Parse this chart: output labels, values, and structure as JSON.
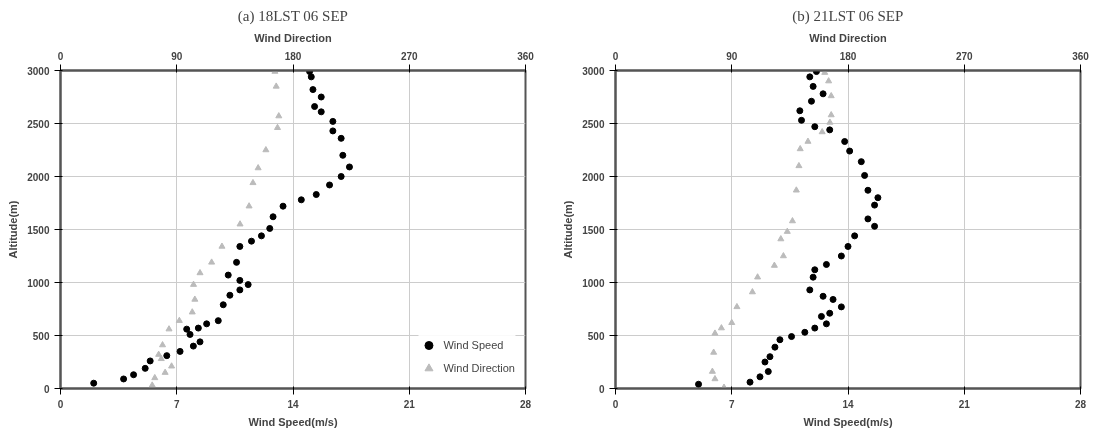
{
  "chart_data": [
    {
      "type": "scatter",
      "title": "(a) 18LST 06 SEP",
      "xlabel": "Wind Speed(m/s)",
      "x2label": "Wind Direction",
      "ylabel": "Altitude(m)",
      "xlim": [
        0,
        28
      ],
      "xticks": [
        0,
        7,
        14,
        21,
        28
      ],
      "x2lim": [
        0,
        360
      ],
      "x2ticks": [
        0,
        90,
        180,
        270,
        360
      ],
      "ylim": [
        0,
        3000
      ],
      "yticks": [
        0,
        500,
        1000,
        1500,
        2000,
        2500,
        3000
      ],
      "grid": true,
      "legend": "bottom right",
      "series": [
        {
          "name": "Wind Speed",
          "color": "#000000",
          "marker": "circle",
          "x": [
            2.0,
            3.8,
            4.4,
            5.1,
            5.4,
            6.4,
            7.2,
            8.0,
            8.4,
            7.8,
            7.6,
            8.3,
            8.8,
            9.5,
            9.8,
            10.2,
            10.8,
            11.3,
            10.8,
            10.1,
            10.6,
            10.8,
            11.5,
            12.1,
            12.6,
            12.8,
            13.4,
            14.5,
            15.4,
            16.2,
            16.9,
            17.4,
            17.0,
            16.9,
            16.4,
            16.4,
            15.7,
            15.3,
            15.7,
            15.2,
            15.1,
            15.0
          ],
          "values": [
            50,
            90,
            130,
            190,
            260,
            310,
            350,
            400,
            440,
            510,
            560,
            570,
            610,
            640,
            790,
            880,
            930,
            980,
            1020,
            1070,
            1190,
            1340,
            1390,
            1440,
            1510,
            1620,
            1720,
            1780,
            1830,
            1920,
            2000,
            2090,
            2200,
            2360,
            2430,
            2520,
            2610,
            2660,
            2750,
            2820,
            2940,
            2990
          ]
        },
        {
          "name": "Wind Direction",
          "color": "#bbbbbb",
          "marker": "triangle",
          "axis": "x2",
          "x": [
            71,
            73,
            81,
            86,
            78,
            76,
            79,
            84,
            92,
            102,
            104,
            103,
            108,
            117,
            125,
            139,
            146,
            149,
            153,
            159,
            168,
            169,
            167,
            166
          ],
          "values": [
            30,
            100,
            150,
            210,
            280,
            320,
            410,
            560,
            640,
            720,
            840,
            980,
            1090,
            1190,
            1340,
            1550,
            1720,
            1940,
            2080,
            2250,
            2460,
            2570,
            2850,
            2990
          ]
        }
      ]
    },
    {
      "type": "scatter",
      "title": "(b) 21LST 06 SEP",
      "xlabel": "Wind Speed(m/s)",
      "x2label": "Wind Direction",
      "ylabel": "Altitude(m)",
      "xlim": [
        0,
        28
      ],
      "xticks": [
        0,
        7,
        14,
        21,
        28
      ],
      "x2lim": [
        0,
        360
      ],
      "x2ticks": [
        0,
        90,
        180,
        270,
        360
      ],
      "ylim": [
        0,
        3000
      ],
      "yticks": [
        0,
        500,
        1000,
        1500,
        2000,
        2500,
        3000
      ],
      "grid": true,
      "series": [
        {
          "color": "#000000",
          "marker": "circle",
          "x": [
            5.0,
            8.1,
            8.7,
            9.2,
            9.0,
            9.3,
            9.6,
            9.9,
            10.6,
            11.4,
            12.0,
            12.7,
            12.4,
            12.9,
            13.6,
            13.1,
            12.5,
            11.7,
            11.9,
            12.0,
            12.7,
            13.6,
            14.0,
            14.4,
            15.6,
            15.2,
            15.6,
            15.8,
            15.2,
            15.0,
            14.8,
            14.1,
            13.8,
            12.9,
            12.0,
            11.2,
            11.1,
            11.8,
            12.5,
            11.9,
            11.7,
            12.1
          ],
          "values": [
            40,
            60,
            110,
            160,
            250,
            300,
            390,
            460,
            490,
            530,
            570,
            610,
            680,
            710,
            770,
            840,
            870,
            930,
            1050,
            1120,
            1170,
            1250,
            1340,
            1440,
            1530,
            1600,
            1730,
            1800,
            1870,
            2010,
            2140,
            2240,
            2330,
            2440,
            2470,
            2530,
            2620,
            2710,
            2780,
            2850,
            2940,
            2990
          ]
        },
        {
          "color": "#bbbbbb",
          "marker": "triangle",
          "axis": "x2",
          "x": [
            84,
            77,
            75,
            76,
            77,
            82,
            90,
            94,
            106,
            110,
            123,
            130,
            128,
            133,
            137,
            140,
            142,
            143,
            149,
            160,
            166,
            167,
            167,
            165,
            162
          ],
          "values": [
            10,
            90,
            160,
            340,
            520,
            570,
            620,
            770,
            910,
            1050,
            1160,
            1250,
            1410,
            1480,
            1580,
            1870,
            2100,
            2260,
            2330,
            2420,
            2510,
            2580,
            2760,
            2900,
            2980
          ]
        }
      ]
    }
  ]
}
